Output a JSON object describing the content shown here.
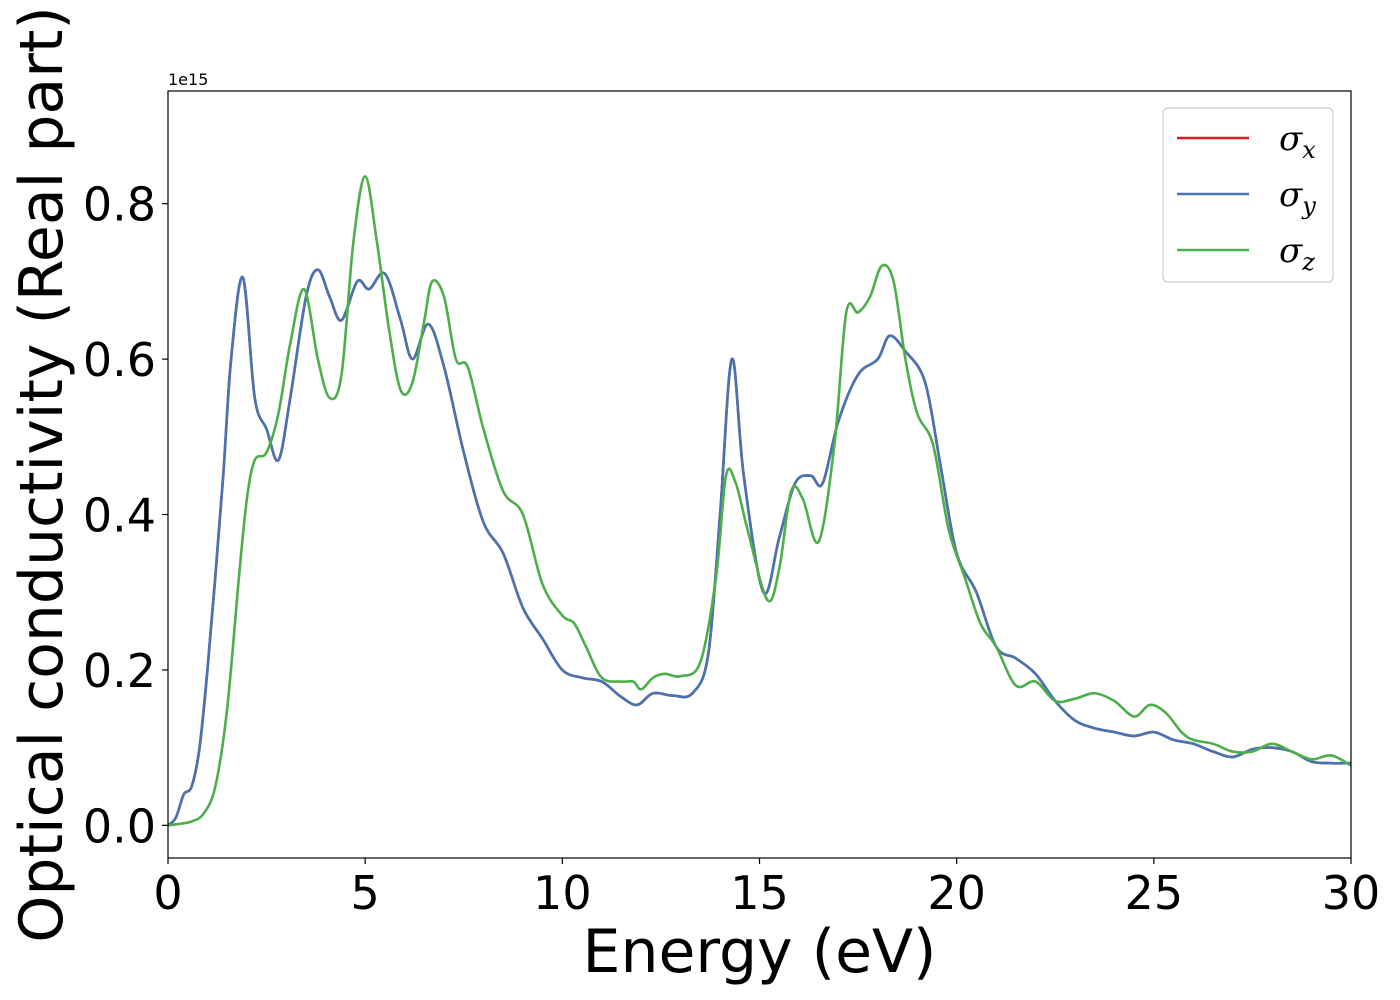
{
  "chart_data": {
    "type": "line",
    "xlabel": "Energy (eV)",
    "ylabel": "Optical conductivity (Real part)",
    "y_offset_text": "1e15",
    "y_multiplier": 1000000000000000.0,
    "xlim": [
      0,
      30
    ],
    "ylim": [
      -0.042,
      0.945
    ],
    "x_ticks": [
      0,
      5,
      10,
      15,
      20,
      25,
      30
    ],
    "x_tick_labels": [
      "0",
      "5",
      "10",
      "15",
      "20",
      "25",
      "30"
    ],
    "y_ticks": [
      0.0,
      0.2,
      0.4,
      0.6,
      0.8
    ],
    "y_tick_labels": [
      "0.0",
      "0.2",
      "0.4",
      "0.6",
      "0.8"
    ],
    "grid": false,
    "legend_position": "top-right",
    "series": [
      {
        "name": "σx",
        "legend_symbol": "σ",
        "legend_subscript": "x",
        "color": "#e41a1c",
        "x": [
          0,
          0.2,
          0.4,
          0.6,
          0.8,
          1.0,
          1.2,
          1.4,
          1.6,
          1.9,
          2.2,
          2.5,
          2.8,
          3.1,
          3.5,
          3.8,
          4.1,
          4.4,
          4.8,
          5.1,
          5.5,
          5.9,
          6.2,
          6.6,
          7.0,
          7.5,
          8.0,
          8.5,
          9.0,
          9.5,
          10.0,
          10.5,
          11.0,
          11.5,
          11.9,
          12.3,
          12.8,
          13.3,
          13.7,
          14.0,
          14.3,
          14.6,
          15.1,
          15.5,
          15.9,
          16.3,
          16.6,
          17.0,
          17.5,
          18.0,
          18.3,
          18.7,
          19.2,
          19.6,
          20.0,
          20.5,
          21.0,
          21.5,
          22.0,
          22.5,
          23.0,
          23.5,
          24.0,
          24.5,
          25.0,
          25.5,
          26.0,
          26.5,
          27.0,
          27.5,
          28.0,
          28.5,
          29.0,
          29.5,
          30.0
        ],
        "y": [
          0.0,
          0.01,
          0.04,
          0.05,
          0.1,
          0.2,
          0.32,
          0.45,
          0.6,
          0.705,
          0.55,
          0.51,
          0.47,
          0.55,
          0.68,
          0.715,
          0.68,
          0.65,
          0.7,
          0.69,
          0.71,
          0.65,
          0.6,
          0.645,
          0.59,
          0.48,
          0.39,
          0.35,
          0.28,
          0.24,
          0.2,
          0.19,
          0.185,
          0.165,
          0.155,
          0.17,
          0.167,
          0.17,
          0.22,
          0.4,
          0.6,
          0.45,
          0.3,
          0.37,
          0.44,
          0.45,
          0.44,
          0.52,
          0.58,
          0.6,
          0.63,
          0.61,
          0.57,
          0.46,
          0.35,
          0.3,
          0.23,
          0.215,
          0.195,
          0.16,
          0.135,
          0.125,
          0.12,
          0.115,
          0.12,
          0.11,
          0.105,
          0.095,
          0.088,
          0.098,
          0.1,
          0.095,
          0.082,
          0.08,
          0.08
        ]
      },
      {
        "name": "σy",
        "legend_symbol": "σ",
        "legend_subscript": "y",
        "color": "#4575b4",
        "x": [
          0,
          0.2,
          0.4,
          0.6,
          0.8,
          1.0,
          1.2,
          1.4,
          1.6,
          1.9,
          2.2,
          2.5,
          2.8,
          3.1,
          3.5,
          3.8,
          4.1,
          4.4,
          4.8,
          5.1,
          5.5,
          5.9,
          6.2,
          6.6,
          7.0,
          7.5,
          8.0,
          8.5,
          9.0,
          9.5,
          10.0,
          10.5,
          11.0,
          11.5,
          11.9,
          12.3,
          12.8,
          13.3,
          13.7,
          14.0,
          14.3,
          14.6,
          15.1,
          15.5,
          15.9,
          16.3,
          16.6,
          17.0,
          17.5,
          18.0,
          18.3,
          18.7,
          19.2,
          19.6,
          20.0,
          20.5,
          21.0,
          21.5,
          22.0,
          22.5,
          23.0,
          23.5,
          24.0,
          24.5,
          25.0,
          25.5,
          26.0,
          26.5,
          27.0,
          27.5,
          28.0,
          28.5,
          29.0,
          29.5,
          30.0
        ],
        "y": [
          0.0,
          0.01,
          0.04,
          0.05,
          0.1,
          0.2,
          0.32,
          0.45,
          0.6,
          0.705,
          0.55,
          0.51,
          0.47,
          0.55,
          0.68,
          0.715,
          0.68,
          0.65,
          0.7,
          0.69,
          0.71,
          0.65,
          0.6,
          0.645,
          0.59,
          0.48,
          0.39,
          0.35,
          0.28,
          0.24,
          0.2,
          0.19,
          0.185,
          0.165,
          0.155,
          0.17,
          0.167,
          0.17,
          0.22,
          0.4,
          0.6,
          0.45,
          0.3,
          0.37,
          0.44,
          0.45,
          0.44,
          0.52,
          0.58,
          0.6,
          0.63,
          0.61,
          0.57,
          0.46,
          0.35,
          0.3,
          0.23,
          0.215,
          0.195,
          0.16,
          0.135,
          0.125,
          0.12,
          0.115,
          0.12,
          0.11,
          0.105,
          0.095,
          0.088,
          0.098,
          0.1,
          0.095,
          0.082,
          0.08,
          0.08
        ]
      },
      {
        "name": "σz",
        "legend_symbol": "σ",
        "legend_subscript": "z",
        "color": "#4daf4a",
        "x": [
          0,
          0.3,
          0.6,
          0.9,
          1.2,
          1.5,
          1.8,
          2.0,
          2.2,
          2.5,
          2.8,
          3.1,
          3.45,
          3.8,
          4.1,
          4.4,
          4.7,
          5.0,
          5.3,
          5.6,
          5.9,
          6.2,
          6.5,
          6.7,
          7.0,
          7.3,
          7.6,
          8.0,
          8.5,
          9.0,
          9.5,
          10.0,
          10.3,
          10.6,
          11.0,
          11.5,
          11.8,
          12.0,
          12.3,
          12.6,
          13.0,
          13.5,
          13.9,
          14.15,
          14.4,
          14.7,
          15.2,
          15.5,
          15.8,
          16.1,
          16.5,
          16.9,
          17.2,
          17.5,
          17.8,
          18.1,
          18.4,
          18.7,
          19.0,
          19.4,
          19.8,
          20.2,
          20.6,
          21.0,
          21.5,
          22.0,
          22.5,
          23.0,
          23.5,
          24.0,
          24.5,
          24.9,
          25.3,
          25.7,
          26.0,
          26.5,
          27.0,
          27.5,
          28.0,
          28.5,
          29.0,
          29.5,
          30.0
        ],
        "y": [
          0.0,
          0.002,
          0.005,
          0.015,
          0.05,
          0.15,
          0.32,
          0.42,
          0.47,
          0.48,
          0.53,
          0.62,
          0.69,
          0.6,
          0.55,
          0.58,
          0.75,
          0.835,
          0.75,
          0.64,
          0.56,
          0.57,
          0.65,
          0.7,
          0.68,
          0.6,
          0.59,
          0.51,
          0.43,
          0.4,
          0.31,
          0.27,
          0.26,
          0.23,
          0.19,
          0.185,
          0.185,
          0.175,
          0.19,
          0.195,
          0.192,
          0.21,
          0.32,
          0.45,
          0.44,
          0.38,
          0.29,
          0.33,
          0.43,
          0.42,
          0.365,
          0.49,
          0.66,
          0.66,
          0.68,
          0.72,
          0.7,
          0.6,
          0.53,
          0.49,
          0.38,
          0.32,
          0.26,
          0.23,
          0.18,
          0.185,
          0.16,
          0.163,
          0.17,
          0.16,
          0.14,
          0.155,
          0.145,
          0.12,
          0.11,
          0.105,
          0.095,
          0.095,
          0.105,
          0.095,
          0.085,
          0.09,
          0.077
        ]
      }
    ]
  }
}
